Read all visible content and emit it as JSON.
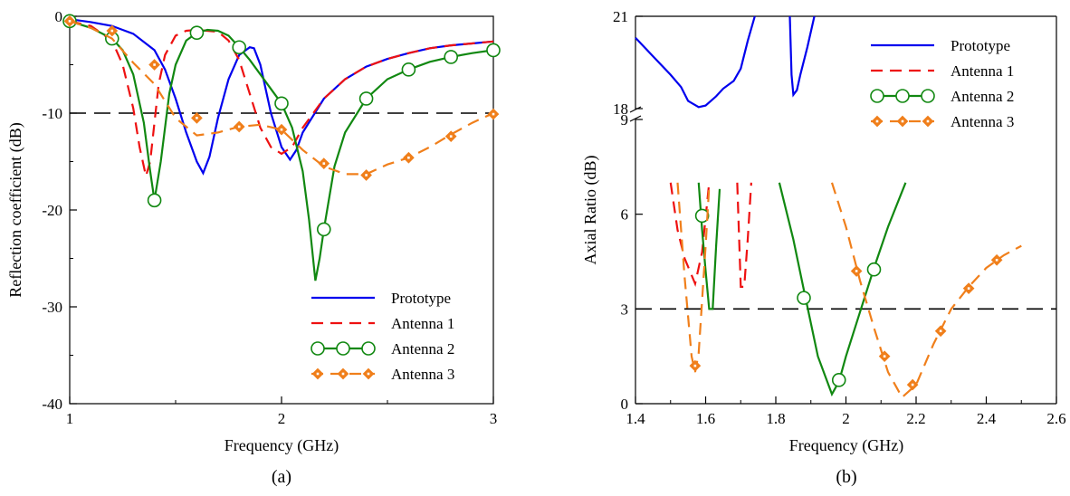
{
  "chart_data": [
    {
      "panel": "(a)",
      "type": "line",
      "xlabel": "Frequency (GHz)",
      "ylabel": "Reflection coefficient (dB)",
      "xlim": [
        1,
        3
      ],
      "ylim": [
        -40,
        0
      ],
      "xticks": [
        1,
        2,
        3
      ],
      "yticks": [
        0,
        -10,
        -20,
        -30,
        -40
      ],
      "reference_line": {
        "y": -10,
        "style": "dashed",
        "color": "#000000"
      },
      "legend_position": "bottom-right",
      "series": [
        {
          "name": "Prototype",
          "color": "#0000ee",
          "dash": "solid",
          "marker": "none",
          "x": [
            1.0,
            1.1,
            1.2,
            1.3,
            1.4,
            1.45,
            1.5,
            1.55,
            1.6,
            1.63,
            1.66,
            1.7,
            1.75,
            1.8,
            1.85,
            1.87,
            1.9,
            1.95,
            2.0,
            2.04,
            2.07,
            2.1,
            2.2,
            2.3,
            2.4,
            2.5,
            2.6,
            2.7,
            2.8,
            2.9,
            3.0
          ],
          "y": [
            -0.3,
            -0.6,
            -1.0,
            -1.8,
            -3.5,
            -5.5,
            -8.5,
            -12.0,
            -15.0,
            -16.2,
            -14.5,
            -10.5,
            -6.5,
            -4.0,
            -3.2,
            -3.3,
            -5.0,
            -10.0,
            -13.5,
            -14.8,
            -13.8,
            -12.0,
            -8.5,
            -6.5,
            -5.2,
            -4.4,
            -3.8,
            -3.3,
            -3.0,
            -2.8,
            -2.6
          ]
        },
        {
          "name": "Antenna 1",
          "color": "#ee1111",
          "dash": "dashed",
          "marker": "none",
          "x": [
            1.0,
            1.1,
            1.2,
            1.25,
            1.3,
            1.33,
            1.36,
            1.38,
            1.4,
            1.42,
            1.45,
            1.5,
            1.55,
            1.6,
            1.7,
            1.75,
            1.8,
            1.85,
            1.9,
            1.95,
            2.0,
            2.05,
            2.1,
            2.2,
            2.3,
            2.4,
            2.5,
            2.6,
            2.7,
            2.8,
            2.9,
            3.0
          ],
          "y": [
            -0.5,
            -1.0,
            -2.5,
            -5.0,
            -9.5,
            -13.5,
            -16.5,
            -15.0,
            -11.0,
            -7.0,
            -4.0,
            -2.0,
            -1.5,
            -1.4,
            -1.6,
            -2.5,
            -4.5,
            -8.0,
            -11.5,
            -13.5,
            -14.2,
            -13.5,
            -11.5,
            -8.5,
            -6.5,
            -5.2,
            -4.4,
            -3.8,
            -3.3,
            -3.0,
            -2.8,
            -2.6
          ]
        },
        {
          "name": "Antenna 2",
          "color": "#118811",
          "dash": "solid",
          "marker": "circle",
          "x": [
            1.0,
            1.1,
            1.2,
            1.25,
            1.3,
            1.35,
            1.38,
            1.4,
            1.43,
            1.47,
            1.5,
            1.55,
            1.6,
            1.65,
            1.7,
            1.75,
            1.8,
            1.85,
            1.9,
            1.95,
            2.0,
            2.05,
            2.1,
            2.13,
            2.16,
            2.18,
            2.2,
            2.25,
            2.3,
            2.4,
            2.5,
            2.6,
            2.7,
            2.8,
            2.9,
            3.0
          ],
          "y": [
            -0.5,
            -1.2,
            -2.3,
            -3.5,
            -6.0,
            -11.0,
            -16.0,
            -19.0,
            -15.0,
            -8.0,
            -5.0,
            -2.5,
            -1.7,
            -1.4,
            -1.5,
            -2.0,
            -3.2,
            -4.5,
            -6.0,
            -7.5,
            -9.0,
            -11.5,
            -16.0,
            -21.0,
            -27.3,
            -25.0,
            -22.0,
            -15.5,
            -12.0,
            -8.5,
            -6.5,
            -5.5,
            -4.7,
            -4.2,
            -3.8,
            -3.5
          ],
          "marker_x": [
            1.0,
            1.2,
            1.4,
            1.6,
            1.8,
            2.0,
            2.2,
            2.4,
            2.6,
            2.8,
            3.0
          ],
          "marker_y": [
            -0.5,
            -2.3,
            -19.0,
            -1.7,
            -3.2,
            -9.0,
            -22.0,
            -8.5,
            -5.5,
            -4.2,
            -3.5
          ]
        },
        {
          "name": "Antenna 3",
          "color": "#f07f1b",
          "dash": "dashed",
          "marker": "diamond",
          "x": [
            1.0,
            1.1,
            1.2,
            1.3,
            1.4,
            1.5,
            1.6,
            1.7,
            1.8,
            1.9,
            2.0,
            2.1,
            2.2,
            2.3,
            2.4,
            2.5,
            2.6,
            2.7,
            2.8,
            2.9,
            3.0
          ],
          "y": [
            -0.5,
            -1.2,
            -2.3,
            -4.8,
            -7.0,
            -10.5,
            -12.3,
            -12.0,
            -11.4,
            -11.2,
            -11.7,
            -13.8,
            -15.5,
            -16.3,
            -16.3,
            -15.3,
            -14.6,
            -13.5,
            -12.2,
            -11.0,
            -10.0
          ],
          "marker_x": [
            1.0,
            1.2,
            1.4,
            1.6,
            1.8,
            2.0,
            2.2,
            2.4,
            2.6,
            2.8,
            3.0
          ],
          "marker_y": [
            -0.5,
            -1.5,
            -5.0,
            -10.5,
            -11.4,
            -11.7,
            -15.2,
            -16.4,
            -14.6,
            -12.4,
            -10.1
          ]
        }
      ],
      "caption": "(a)"
    },
    {
      "panel": "(b)",
      "type": "line",
      "xlabel": "Frequency (GHz)",
      "ylabel": "Axial Ratio (dB)",
      "xlim": [
        1.4,
        2.6
      ],
      "ylim": [
        0,
        21
      ],
      "axis_break": {
        "lower": [
          0,
          9
        ],
        "upper": [
          18,
          21
        ]
      },
      "xticks": [
        1.4,
        1.6,
        1.8,
        2.0,
        2.2,
        2.4,
        2.6
      ],
      "xtick_labels": [
        "1.4",
        "1.6",
        "1.8",
        "2",
        "2.2",
        "2.4",
        "2.6"
      ],
      "yticks_lower": [
        0,
        3,
        6,
        9
      ],
      "yticks_upper": [
        18,
        21
      ],
      "reference_line": {
        "y": 3,
        "style": "dashed",
        "color": "#000000"
      },
      "legend_position": "top-right",
      "series": [
        {
          "name": "Prototype",
          "color": "#0000ee",
          "dash": "solid",
          "marker": "none",
          "segments": [
            {
              "x": [
                1.4,
                1.45,
                1.5,
                1.53,
                1.55,
                1.58,
                1.6,
                1.63,
                1.65,
                1.68,
                1.7,
                1.72,
                1.74
              ],
              "y": [
                20.3,
                19.7,
                19.1,
                18.7,
                18.25,
                18.05,
                18.1,
                18.4,
                18.65,
                18.9,
                19.3,
                20.2,
                21.0
              ]
            },
            {
              "x": [
                1.84,
                1.845,
                1.85,
                1.86,
                1.87,
                1.89,
                1.91
              ],
              "y": [
                21.0,
                19.1,
                18.45,
                18.6,
                19.1,
                20.0,
                21.0
              ]
            }
          ]
        },
        {
          "name": "Antenna 1",
          "color": "#ee1111",
          "dash": "dashed",
          "marker": "none",
          "segments": [
            {
              "x": [
                1.5,
                1.52,
                1.54,
                1.57,
                1.59,
                1.61
              ],
              "y": [
                7.0,
                5.5,
                4.6,
                3.8,
                4.8,
                7.0
              ]
            },
            {
              "x": [
                1.69,
                1.7,
                1.71,
                1.72,
                1.73
              ],
              "y": [
                7.0,
                3.7,
                3.7,
                5.2,
                7.0
              ]
            }
          ]
        },
        {
          "name": "Antenna 2",
          "color": "#118811",
          "dash": "solid",
          "marker": "circle",
          "segments": [
            {
              "x": [
                1.58,
                1.59,
                1.6,
                1.61,
                1.62,
                1.63,
                1.64
              ],
              "y": [
                7.0,
                5.5,
                4.2,
                3.0,
                3.0,
                5.0,
                6.8
              ]
            },
            {
              "x": [
                1.81,
                1.85,
                1.88,
                1.92,
                1.96,
                1.98,
                2.0,
                2.04,
                2.08,
                2.12,
                2.17
              ],
              "y": [
                7.0,
                5.2,
                3.6,
                1.5,
                0.3,
                0.7,
                1.5,
                2.9,
                4.3,
                5.6,
                7.0
              ]
            }
          ],
          "marker_x": [
            1.59,
            1.88,
            1.98,
            2.08
          ],
          "marker_y": [
            5.95,
            3.35,
            0.75,
            4.25
          ]
        },
        {
          "name": "Antenna 3",
          "color": "#f07f1b",
          "dash": "dashed",
          "marker": "diamond",
          "segments": [
            {
              "x": [
                1.52,
                1.54,
                1.56,
                1.57,
                1.58,
                1.6,
                1.61
              ],
              "y": [
                7.0,
                4.0,
                1.5,
                1.0,
                1.6,
                5.0,
                6.9
              ]
            },
            {
              "x": [
                1.96,
                2.0,
                2.04,
                2.08,
                2.12,
                2.16,
                2.2,
                2.25,
                2.3,
                2.35,
                2.4,
                2.45,
                2.5
              ],
              "y": [
                7.0,
                5.6,
                3.9,
                2.4,
                1.0,
                0.2,
                0.6,
                1.9,
                3.0,
                3.7,
                4.3,
                4.7,
                5.0
              ]
            }
          ],
          "marker_x": [
            1.57,
            2.03,
            2.11,
            2.19,
            2.27,
            2.35,
            2.43
          ],
          "marker_y": [
            1.2,
            4.2,
            1.5,
            0.6,
            2.3,
            3.65,
            4.55
          ]
        }
      ],
      "caption": "(b)"
    }
  ]
}
